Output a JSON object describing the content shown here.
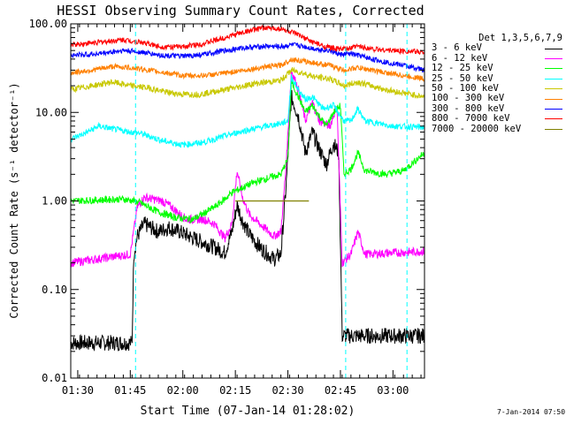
{
  "chart_data": {
    "type": "line",
    "title": "HESSI Observing Summary Count Rates, Corrected",
    "xlabel": "Start Time (07-Jan-14 01:28:02)",
    "ylabel": "Corrected Count Rate (s⁻¹ detector⁻¹)",
    "y_scale": "log",
    "ylim": [
      0.01,
      100
    ],
    "xlim_minutes": [
      0,
      101
    ],
    "y_ticks": [
      "0.01",
      "0.10",
      "1.00",
      "10.00",
      "100.00"
    ],
    "x_ticks": [
      {
        "label": "01:30",
        "minute": 2
      },
      {
        "label": "01:45",
        "minute": 17
      },
      {
        "label": "02:00",
        "minute": 32
      },
      {
        "label": "02:15",
        "minute": 47
      },
      {
        "label": "02:30",
        "minute": 62
      },
      {
        "label": "02:45",
        "minute": 77
      },
      {
        "label": "03:00",
        "minute": 92
      }
    ],
    "legend_title": "Det 1,3,5,6,7,9",
    "legend_position": "right",
    "attenuator_marks_minutes": [
      18.5,
      78.5,
      96
    ],
    "series": [
      {
        "name": "3 - 6 keV",
        "color": "#000000",
        "points": [
          [
            0,
            0.025
          ],
          [
            17.5,
            0.025
          ],
          [
            18,
            0.25
          ],
          [
            19,
            0.4
          ],
          [
            21,
            0.55
          ],
          [
            25,
            0.45
          ],
          [
            28,
            0.5
          ],
          [
            31,
            0.45
          ],
          [
            35,
            0.38
          ],
          [
            41,
            0.3
          ],
          [
            44,
            0.26
          ],
          [
            46,
            0.45
          ],
          [
            47.5,
            0.9
          ],
          [
            49,
            0.6
          ],
          [
            51,
            0.42
          ],
          [
            54,
            0.3
          ],
          [
            58,
            0.22
          ],
          [
            60,
            0.25
          ],
          [
            61.5,
            1.5
          ],
          [
            63,
            15
          ],
          [
            65,
            9
          ],
          [
            67,
            3.5
          ],
          [
            69,
            6
          ],
          [
            71,
            3.8
          ],
          [
            73,
            2.6
          ],
          [
            75,
            4.5
          ],
          [
            76.5,
            3.5
          ],
          [
            77.5,
            0.03
          ],
          [
            101,
            0.03
          ]
        ]
      },
      {
        "name": "6 - 12 keV",
        "color": "#ff00ff",
        "points": [
          [
            0,
            0.2
          ],
          [
            17,
            0.25
          ],
          [
            19,
            0.85
          ],
          [
            21,
            1.1
          ],
          [
            26,
            1.0
          ],
          [
            28,
            0.9
          ],
          [
            33,
            0.62
          ],
          [
            38,
            0.62
          ],
          [
            41,
            0.55
          ],
          [
            44,
            0.38
          ],
          [
            46,
            0.55
          ],
          [
            47.5,
            2.2
          ],
          [
            49,
            1.1
          ],
          [
            51,
            0.7
          ],
          [
            54,
            0.55
          ],
          [
            58,
            0.4
          ],
          [
            60,
            0.45
          ],
          [
            61.5,
            2.5
          ],
          [
            63,
            30
          ],
          [
            65,
            18
          ],
          [
            67,
            8
          ],
          [
            69,
            13
          ],
          [
            71,
            8
          ],
          [
            74,
            7
          ],
          [
            76,
            12
          ],
          [
            77.5,
            0.2
          ],
          [
            80,
            0.25
          ],
          [
            82,
            0.45
          ],
          [
            84,
            0.25
          ],
          [
            101,
            0.27
          ]
        ]
      },
      {
        "name": "12 - 25 keV",
        "color": "#00ff00",
        "points": [
          [
            0,
            1.0
          ],
          [
            15,
            1.05
          ],
          [
            18,
            1.0
          ],
          [
            20,
            0.95
          ],
          [
            25,
            0.75
          ],
          [
            30,
            0.65
          ],
          [
            35,
            0.62
          ],
          [
            41,
            0.85
          ],
          [
            44,
            1.05
          ],
          [
            46,
            1.25
          ],
          [
            48,
            1.35
          ],
          [
            52,
            1.6
          ],
          [
            56,
            1.8
          ],
          [
            60,
            2.0
          ],
          [
            62,
            3
          ],
          [
            63,
            22
          ],
          [
            65,
            15
          ],
          [
            67,
            10
          ],
          [
            69,
            12
          ],
          [
            71,
            9
          ],
          [
            73,
            7
          ],
          [
            75,
            10
          ],
          [
            77,
            12
          ],
          [
            78,
            2
          ],
          [
            80,
            2.3
          ],
          [
            82,
            3.5
          ],
          [
            84,
            2.2
          ],
          [
            90,
            2.0
          ],
          [
            95,
            2.2
          ],
          [
            101,
            3.5
          ]
        ]
      },
      {
        "name": "25 - 50 keV",
        "color": "#00ffff",
        "points": [
          [
            0,
            5
          ],
          [
            4,
            5.8
          ],
          [
            8,
            7
          ],
          [
            12,
            6.5
          ],
          [
            17,
            6
          ],
          [
            20,
            5.8
          ],
          [
            26,
            4.8
          ],
          [
            32,
            4.3
          ],
          [
            38,
            4.6
          ],
          [
            44,
            5.4
          ],
          [
            48,
            6
          ],
          [
            52,
            6.5
          ],
          [
            56,
            7
          ],
          [
            60,
            7.5
          ],
          [
            62,
            8
          ],
          [
            63,
            25
          ],
          [
            65,
            18
          ],
          [
            67,
            14
          ],
          [
            69,
            15
          ],
          [
            72,
            11
          ],
          [
            75,
            12
          ],
          [
            78,
            8
          ],
          [
            80,
            8
          ],
          [
            82,
            11
          ],
          [
            84,
            8
          ],
          [
            92,
            7
          ],
          [
            101,
            6.8
          ]
        ]
      },
      {
        "name": "50 - 100 keV",
        "color": "#c8c800",
        "points": [
          [
            0,
            18
          ],
          [
            6,
            20
          ],
          [
            12,
            22
          ],
          [
            17,
            20
          ],
          [
            22,
            19
          ],
          [
            27,
            17
          ],
          [
            32,
            16
          ],
          [
            37,
            16
          ],
          [
            42,
            17.5
          ],
          [
            47,
            19
          ],
          [
            52,
            21
          ],
          [
            56,
            22
          ],
          [
            60,
            23
          ],
          [
            63,
            30
          ],
          [
            66,
            28
          ],
          [
            70,
            25
          ],
          [
            74,
            24
          ],
          [
            78,
            20
          ],
          [
            82,
            22
          ],
          [
            90,
            18
          ],
          [
            101,
            15
          ]
        ]
      },
      {
        "name": "100 - 300 keV",
        "color": "#ff8000",
        "points": [
          [
            0,
            28
          ],
          [
            6,
            30
          ],
          [
            12,
            33
          ],
          [
            17,
            32
          ],
          [
            22,
            30
          ],
          [
            27,
            28
          ],
          [
            32,
            26
          ],
          [
            37,
            26
          ],
          [
            42,
            27
          ],
          [
            47,
            29
          ],
          [
            52,
            31
          ],
          [
            56,
            33
          ],
          [
            60,
            34
          ],
          [
            63,
            40
          ],
          [
            66,
            38
          ],
          [
            70,
            36
          ],
          [
            74,
            34
          ],
          [
            78,
            30
          ],
          [
            82,
            32
          ],
          [
            90,
            28
          ],
          [
            101,
            24
          ]
        ]
      },
      {
        "name": "300 - 800 keV",
        "color": "#0000ff",
        "points": [
          [
            0,
            44
          ],
          [
            8,
            46
          ],
          [
            15,
            50
          ],
          [
            20,
            48
          ],
          [
            26,
            44
          ],
          [
            32,
            43
          ],
          [
            38,
            45
          ],
          [
            44,
            50
          ],
          [
            50,
            54
          ],
          [
            56,
            56
          ],
          [
            60,
            55
          ],
          [
            63,
            58
          ],
          [
            66,
            56
          ],
          [
            70,
            52
          ],
          [
            74,
            50
          ],
          [
            77,
            45
          ],
          [
            80,
            46
          ],
          [
            82,
            44
          ],
          [
            86,
            40
          ],
          [
            90,
            37
          ],
          [
            95,
            34
          ],
          [
            101,
            30
          ]
        ]
      },
      {
        "name": "800 - 7000 keV",
        "color": "#ff0000",
        "points": [
          [
            0,
            58
          ],
          [
            8,
            62
          ],
          [
            15,
            66
          ],
          [
            20,
            62
          ],
          [
            26,
            55
          ],
          [
            32,
            55
          ],
          [
            38,
            60
          ],
          [
            44,
            70
          ],
          [
            50,
            82
          ],
          [
            55,
            90
          ],
          [
            60,
            88
          ],
          [
            64,
            78
          ],
          [
            68,
            65
          ],
          [
            72,
            56
          ],
          [
            76,
            52
          ],
          [
            79,
            52
          ],
          [
            82,
            56
          ],
          [
            86,
            52
          ],
          [
            92,
            50
          ],
          [
            101,
            48
          ]
        ]
      },
      {
        "name": "7000 - 20000 keV",
        "color": "#808000",
        "points": [
          [
            47,
            1.0
          ],
          [
            68,
            1.0
          ]
        ]
      }
    ]
  },
  "legend": {
    "title": "Det 1,3,5,6,7,9",
    "entries": [
      "3 - 6 keV",
      "6 - 12 keV",
      "12 - 25 keV",
      "25 - 50 keV",
      "50 - 100 keV",
      "100 - 300 keV",
      "300 - 800 keV",
      "800 - 7000 keV",
      "7000 - 20000 keV"
    ]
  },
  "footer": {
    "timestamp": "7-Jan-2014 07:50"
  }
}
